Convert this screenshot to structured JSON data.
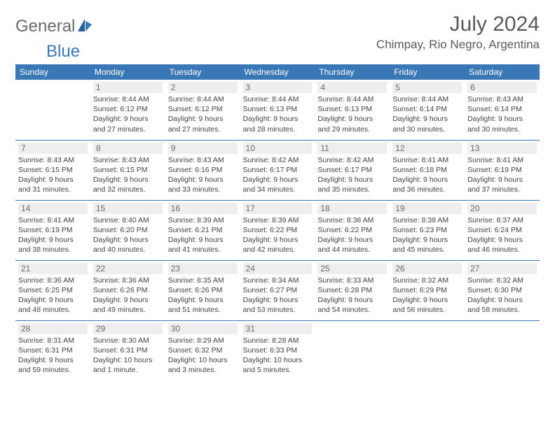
{
  "brand": {
    "word1": "General",
    "word2": "Blue"
  },
  "title": "July 2024",
  "location": "Chimpay, Rio Negro, Argentina",
  "colors": {
    "header_bg": "#3a78b5",
    "header_text": "#ffffff",
    "daynum_bg": "#eeeeee",
    "rule": "#3a78b5",
    "text": "#444444",
    "title_text": "#5a5a5a"
  },
  "layout": {
    "columns": 7,
    "rows": 5,
    "first_weekday_offset": 1
  },
  "weekdays": [
    "Sunday",
    "Monday",
    "Tuesday",
    "Wednesday",
    "Thursday",
    "Friday",
    "Saturday"
  ],
  "days": [
    {
      "n": 1,
      "sunrise": "8:44 AM",
      "sunset": "6:12 PM",
      "daylight": "9 hours and 27 minutes."
    },
    {
      "n": 2,
      "sunrise": "8:44 AM",
      "sunset": "6:12 PM",
      "daylight": "9 hours and 27 minutes."
    },
    {
      "n": 3,
      "sunrise": "8:44 AM",
      "sunset": "6:13 PM",
      "daylight": "9 hours and 28 minutes."
    },
    {
      "n": 4,
      "sunrise": "8:44 AM",
      "sunset": "6:13 PM",
      "daylight": "9 hours and 29 minutes."
    },
    {
      "n": 5,
      "sunrise": "8:44 AM",
      "sunset": "6:14 PM",
      "daylight": "9 hours and 30 minutes."
    },
    {
      "n": 6,
      "sunrise": "8:43 AM",
      "sunset": "6:14 PM",
      "daylight": "9 hours and 30 minutes."
    },
    {
      "n": 7,
      "sunrise": "8:43 AM",
      "sunset": "6:15 PM",
      "daylight": "9 hours and 31 minutes."
    },
    {
      "n": 8,
      "sunrise": "8:43 AM",
      "sunset": "6:15 PM",
      "daylight": "9 hours and 32 minutes."
    },
    {
      "n": 9,
      "sunrise": "8:43 AM",
      "sunset": "6:16 PM",
      "daylight": "9 hours and 33 minutes."
    },
    {
      "n": 10,
      "sunrise": "8:42 AM",
      "sunset": "6:17 PM",
      "daylight": "9 hours and 34 minutes."
    },
    {
      "n": 11,
      "sunrise": "8:42 AM",
      "sunset": "6:17 PM",
      "daylight": "9 hours and 35 minutes."
    },
    {
      "n": 12,
      "sunrise": "8:41 AM",
      "sunset": "6:18 PM",
      "daylight": "9 hours and 36 minutes."
    },
    {
      "n": 13,
      "sunrise": "8:41 AM",
      "sunset": "6:19 PM",
      "daylight": "9 hours and 37 minutes."
    },
    {
      "n": 14,
      "sunrise": "8:41 AM",
      "sunset": "6:19 PM",
      "daylight": "9 hours and 38 minutes."
    },
    {
      "n": 15,
      "sunrise": "8:40 AM",
      "sunset": "6:20 PM",
      "daylight": "9 hours and 40 minutes."
    },
    {
      "n": 16,
      "sunrise": "8:39 AM",
      "sunset": "6:21 PM",
      "daylight": "9 hours and 41 minutes."
    },
    {
      "n": 17,
      "sunrise": "8:39 AM",
      "sunset": "6:22 PM",
      "daylight": "9 hours and 42 minutes."
    },
    {
      "n": 18,
      "sunrise": "8:38 AM",
      "sunset": "6:22 PM",
      "daylight": "9 hours and 44 minutes."
    },
    {
      "n": 19,
      "sunrise": "8:38 AM",
      "sunset": "6:23 PM",
      "daylight": "9 hours and 45 minutes."
    },
    {
      "n": 20,
      "sunrise": "8:37 AM",
      "sunset": "6:24 PM",
      "daylight": "9 hours and 46 minutes."
    },
    {
      "n": 21,
      "sunrise": "8:36 AM",
      "sunset": "6:25 PM",
      "daylight": "9 hours and 48 minutes."
    },
    {
      "n": 22,
      "sunrise": "8:36 AM",
      "sunset": "6:26 PM",
      "daylight": "9 hours and 49 minutes."
    },
    {
      "n": 23,
      "sunrise": "8:35 AM",
      "sunset": "6:26 PM",
      "daylight": "9 hours and 51 minutes."
    },
    {
      "n": 24,
      "sunrise": "8:34 AM",
      "sunset": "6:27 PM",
      "daylight": "9 hours and 53 minutes."
    },
    {
      "n": 25,
      "sunrise": "8:33 AM",
      "sunset": "6:28 PM",
      "daylight": "9 hours and 54 minutes."
    },
    {
      "n": 26,
      "sunrise": "8:32 AM",
      "sunset": "6:29 PM",
      "daylight": "9 hours and 56 minutes."
    },
    {
      "n": 27,
      "sunrise": "8:32 AM",
      "sunset": "6:30 PM",
      "daylight": "9 hours and 58 minutes."
    },
    {
      "n": 28,
      "sunrise": "8:31 AM",
      "sunset": "6:31 PM",
      "daylight": "9 hours and 59 minutes."
    },
    {
      "n": 29,
      "sunrise": "8:30 AM",
      "sunset": "6:31 PM",
      "daylight": "10 hours and 1 minute."
    },
    {
      "n": 30,
      "sunrise": "8:29 AM",
      "sunset": "6:32 PM",
      "daylight": "10 hours and 3 minutes."
    },
    {
      "n": 31,
      "sunrise": "8:28 AM",
      "sunset": "6:33 PM",
      "daylight": "10 hours and 5 minutes."
    }
  ],
  "labels": {
    "sunrise": "Sunrise:",
    "sunset": "Sunset:",
    "daylight": "Daylight:"
  }
}
